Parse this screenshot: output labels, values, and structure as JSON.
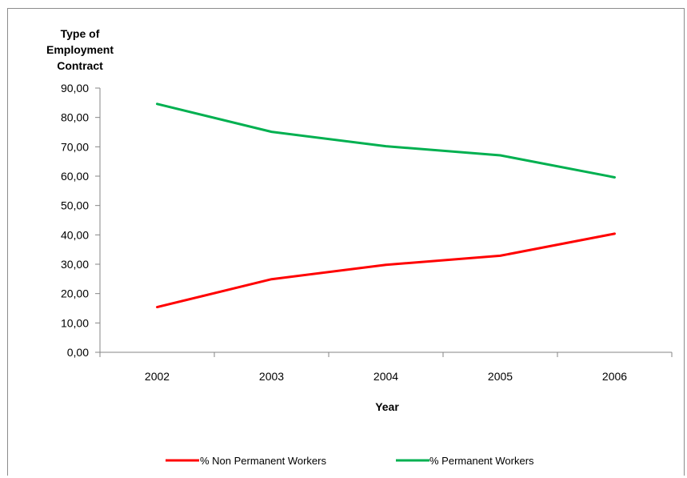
{
  "chart_data": {
    "type": "line",
    "ylabel_lines": [
      "Type of",
      "Employment",
      "Contract"
    ],
    "xlabel": "Year",
    "categories": [
      "2002",
      "2003",
      "2004",
      "2005",
      "2006"
    ],
    "ylim": [
      0,
      90
    ],
    "yticks": [
      "0,00",
      "10,00",
      "20,00",
      "30,00",
      "40,00",
      "50,00",
      "60,00",
      "70,00",
      "80,00",
      "90,00"
    ],
    "grid": false,
    "legend_position": "bottom",
    "series": [
      {
        "name": "% Non Permanent Workers",
        "color": "#ff0000",
        "values": [
          15.4,
          24.9,
          29.8,
          32.9,
          40.4
        ]
      },
      {
        "name": "% Permanent Workers",
        "color": "#00b050",
        "values": [
          84.6,
          75.1,
          70.2,
          67.1,
          59.6
        ]
      }
    ]
  }
}
